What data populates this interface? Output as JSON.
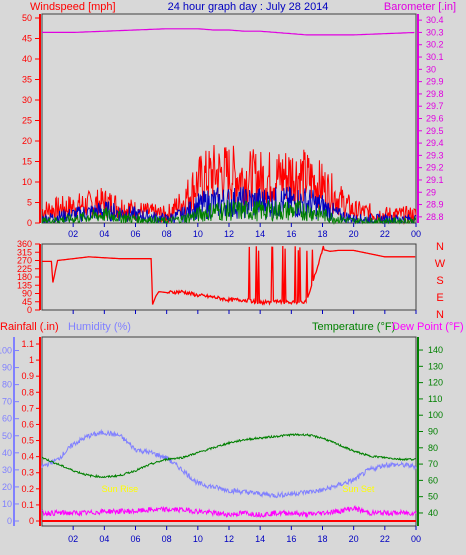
{
  "header": {
    "title": "24 hour graph day : July 28 2014",
    "left_label": "Windspeed [mph]",
    "right_label": "Barometer [.in]"
  },
  "wind_dir_labels": [
    "N",
    "W",
    "S",
    "E",
    "N"
  ],
  "bottom_labels": {
    "rainfall": "Rainfall (.in)",
    "humidity": "Humidity (%)",
    "temperature": "Temperature (°F)",
    "dew_point": "Dew Point (°F)",
    "sunrise": "Sun Rise",
    "sunset": "Sun Set"
  },
  "colors": {
    "background": "#d8d8d8",
    "windspeed": "#ff0000",
    "gust_blue": "#0000c0",
    "wind_green": "#008000",
    "barometer": "#e000e0",
    "humidity": "#8080ff",
    "temperature": "#008000",
    "dew_point": "#ff00ff",
    "rainfall": "#ff0000",
    "sun_label": "#ffff00",
    "title": "#0000c0"
  },
  "chart_data": [
    {
      "type": "line",
      "title": "24 hour graph day : July 28 2014",
      "ylabel_left": "Windspeed [mph]",
      "ylabel_right": "Barometer [.in]",
      "x_ticks": [
        "02",
        "04",
        "06",
        "08",
        "10",
        "12",
        "14",
        "16",
        "18",
        "20",
        "22",
        "00"
      ],
      "y_left_ticks": [
        "0",
        "5",
        "10",
        "15",
        "20",
        "25",
        "30",
        "35",
        "40",
        "45",
        "50"
      ],
      "y_right_ticks": [
        "28.8",
        "28.9",
        "29",
        "29.1",
        "29.2",
        "29.3",
        "29.4",
        "29.5",
        "29.6",
        "29.7",
        "29.8",
        "29.9",
        "30",
        "30.1",
        "30.2",
        "30.3",
        "30.4"
      ],
      "ylim_left": [
        0,
        50
      ],
      "ylim_right": [
        28.75,
        30.45
      ],
      "x_hours": [
        0,
        2,
        4,
        6,
        8,
        9,
        10,
        11,
        12,
        13,
        14,
        15,
        16,
        17,
        18,
        19,
        20,
        22,
        24
      ],
      "series": [
        {
          "name": "Windspeed [mph]",
          "axis": "left",
          "values": [
            3,
            4,
            5,
            3,
            2,
            5,
            10,
            12,
            12,
            11,
            11,
            11,
            12,
            11,
            9,
            6,
            3,
            2,
            2
          ]
        },
        {
          "axis": "left",
          "values": [
            1,
            2,
            3,
            2,
            1,
            2,
            4,
            5,
            5,
            5,
            5,
            5,
            5,
            5,
            4,
            2,
            1,
            1,
            1
          ]
        },
        {
          "axis": "left",
          "values": [
            0.5,
            1,
            2,
            1,
            0.5,
            1,
            2,
            3,
            3,
            3,
            3,
            3,
            3,
            3,
            2,
            1,
            0.5,
            0.5,
            0.5
          ]
        },
        {
          "name": "Barometer [.in]",
          "axis": "right",
          "values": [
            30.3,
            30.3,
            30.31,
            30.32,
            30.33,
            30.33,
            30.33,
            30.32,
            30.32,
            30.31,
            30.31,
            30.3,
            30.29,
            30.28,
            30.28,
            30.28,
            30.28,
            30.29,
            30.3
          ]
        }
      ]
    },
    {
      "type": "line",
      "x_ticks": [
        "02",
        "04",
        "06",
        "08",
        "10",
        "12",
        "14",
        "16",
        "18",
        "20",
        "22",
        "00"
      ],
      "y_ticks": [
        "0",
        "45",
        "90",
        "135",
        "180",
        "225",
        "270",
        "315",
        "360"
      ],
      "ylim": [
        0,
        360
      ],
      "x_hours": [
        0,
        0.6,
        0.7,
        1.0,
        3,
        5,
        7,
        7.1,
        7.3,
        7.5,
        8,
        9,
        10,
        11,
        12,
        13,
        14,
        15,
        16,
        17,
        18,
        18.5,
        19,
        20,
        22,
        24
      ],
      "series": [
        {
          "values": [
            265,
            265,
            150,
            270,
            290,
            280,
            280,
            30,
            75,
            100,
            95,
            100,
            80,
            70,
            55,
            55,
            40,
            45,
            40,
            45,
            330,
            320,
            325,
            325,
            290,
            290
          ]
        }
      ]
    },
    {
      "type": "line",
      "ylabel_left": "Rainfall (.in)",
      "ylabel_left2": "Humidity (%)",
      "ylabel_right": "Temperature (°F)",
      "ylabel_right2": "Dew Point (°F)",
      "x_ticks": [
        "02",
        "04",
        "06",
        "08",
        "10",
        "12",
        "14",
        "16",
        "18",
        "20",
        "22",
        "00"
      ],
      "rain_ticks": [
        "0",
        "0.1",
        "0.2",
        "0.3",
        "0.4",
        "0.5",
        "0.6",
        "0.7",
        "0.8",
        "0.9",
        "1",
        "1.1"
      ],
      "humidity_ticks": [
        "0",
        "10",
        "20",
        "30",
        "40",
        "50",
        "60",
        "70",
        "80",
        "90",
        "100"
      ],
      "temp_ticks": [
        "40",
        "50",
        "60",
        "70",
        "80",
        "90",
        "100",
        "110",
        "120",
        "130",
        "140"
      ],
      "ylim_humidity": [
        0,
        105
      ],
      "ylim_temp": [
        32,
        148
      ],
      "x_hours": [
        0,
        1,
        2,
        3,
        4,
        5,
        6,
        7,
        8,
        9,
        10,
        11,
        12,
        13,
        14,
        15,
        16,
        17,
        18,
        19,
        20,
        21,
        22,
        23,
        24
      ],
      "series": [
        {
          "name": "Humidity (%)",
          "axis": "left",
          "values": [
            32,
            36,
            45,
            50,
            52,
            50,
            42,
            40,
            37,
            30,
            22,
            20,
            18,
            17,
            16,
            15,
            16,
            17,
            18,
            21,
            24,
            30,
            33,
            33,
            32
          ]
        },
        {
          "name": "Temperature (°F)",
          "axis": "right",
          "values": [
            74,
            70,
            66,
            63,
            62,
            63,
            66,
            70,
            73,
            74,
            77,
            80,
            83,
            85,
            86,
            87,
            88,
            88,
            86,
            82,
            78,
            75,
            74,
            73,
            73
          ]
        },
        {
          "name": "Dew Point (°F)",
          "axis": "right",
          "values": [
            40,
            40,
            40,
            40,
            41,
            41,
            41,
            42,
            42,
            42,
            41,
            40,
            39,
            40,
            39,
            40,
            40,
            39,
            40,
            41,
            43,
            40,
            40,
            40,
            40
          ]
        },
        {
          "name": "Rainfall (.in)",
          "axis": "left",
          "values": [
            0,
            0,
            0,
            0,
            0,
            0,
            0,
            0,
            0,
            0,
            0,
            0,
            0,
            0,
            0,
            0,
            0,
            0,
            0,
            0,
            0,
            0,
            0,
            0,
            0
          ]
        }
      ],
      "annotations": [
        {
          "text": "Sun Rise",
          "hour": 5.0
        },
        {
          "text": "Sun Set",
          "hour": 20.3
        }
      ]
    }
  ]
}
